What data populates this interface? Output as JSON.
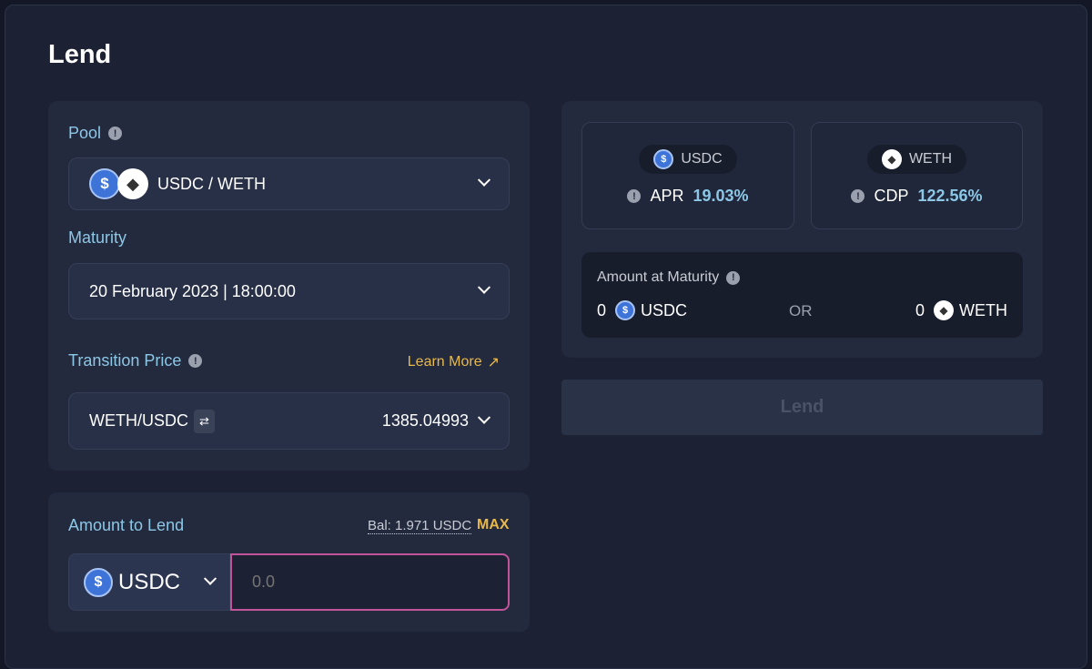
{
  "page": {
    "title": "Lend"
  },
  "pool": {
    "label": "Pool",
    "value": "USDC / WETH",
    "icons": [
      "usdc-icon",
      "weth-icon"
    ]
  },
  "maturity": {
    "label": "Maturity",
    "value": "20 February 2023 | 18:00:00"
  },
  "transition": {
    "label": "Transition Price",
    "learn_more": "Learn More",
    "pair": "WETH/USDC",
    "price": "1385.04993"
  },
  "amount": {
    "label": "Amount to Lend",
    "balance": "Bal: 1.971 USDC",
    "max": "MAX",
    "token": "USDC",
    "placeholder": "0.0"
  },
  "stats": {
    "usdc": {
      "token": "USDC",
      "label": "APR",
      "value": "19.03%"
    },
    "weth": {
      "token": "WETH",
      "label": "CDP",
      "value": "122.56%"
    }
  },
  "maturity_amount": {
    "label": "Amount at Maturity",
    "usdc_amount": "0",
    "usdc_token": "USDC",
    "or": "OR",
    "weth_amount": "0",
    "weth_token": "WETH"
  },
  "lend_button": "Lend",
  "colors": {
    "accent": "#8cc7e6",
    "link": "#e8b84a",
    "input_focus": "#c2559a"
  }
}
